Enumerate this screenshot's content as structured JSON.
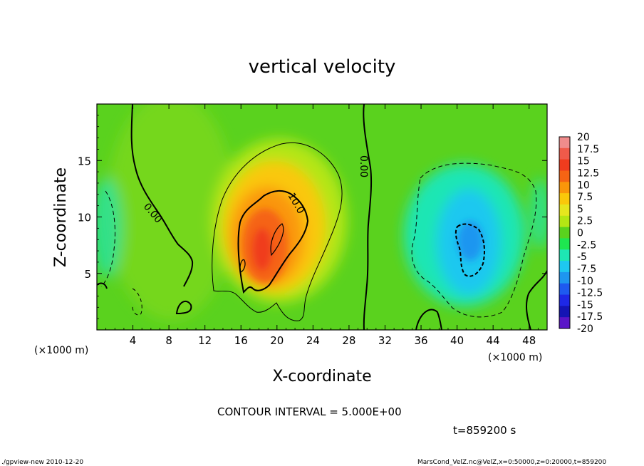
{
  "chart_data": {
    "type": "heatmap",
    "title": "vertical velocity",
    "xlabel": "X-coordinate",
    "ylabel": "Z-coordinate",
    "x_unit_label": "(×1000 m)",
    "x_unit_label_right": "(×1000 m)",
    "xlim": [
      0,
      50
    ],
    "ylim": [
      0,
      20
    ],
    "x_ticks": [
      4,
      8,
      12,
      16,
      20,
      24,
      28,
      32,
      36,
      40,
      44,
      48
    ],
    "y_ticks": [
      5,
      10,
      15
    ],
    "contour_interval_text": "CONTOUR INTERVAL = 5.000E+00",
    "time_text": "t=859200 s",
    "footer_left": "./gpview-new   2010-12-20",
    "footer_right": "MarsCond_VelZ.nc@VelZ,x=0:50000,z=0:20000,t=859200",
    "contour_labels": [
      "0.00",
      "10.0",
      "0.00"
    ],
    "colorbar": {
      "labels": [
        "20",
        "17.5",
        "15",
        "12.5",
        "10",
        "7.5",
        "5",
        "2.5",
        "0",
        "-2.5",
        "-5",
        "-7.5",
        "-10",
        "-12.5",
        "-15",
        "-17.5",
        "-20"
      ],
      "colors": [
        "#f08c8c",
        "#f05a4a",
        "#f03c1e",
        "#f56414",
        "#fa960a",
        "#fac80a",
        "#e6e61e",
        "#b4e614",
        "#5ad21e",
        "#1ee650",
        "#1ee6b4",
        "#1ec8f0",
        "#1e96f0",
        "#1e5af0",
        "#1e28e6",
        "#1414b4",
        "#5a14c8"
      ]
    },
    "features": [
      {
        "kind": "updraft",
        "x": 19,
        "z": 8,
        "peak": 15
      },
      {
        "kind": "downdraft",
        "x": 41.5,
        "z": 8,
        "peak": -12
      }
    ]
  }
}
